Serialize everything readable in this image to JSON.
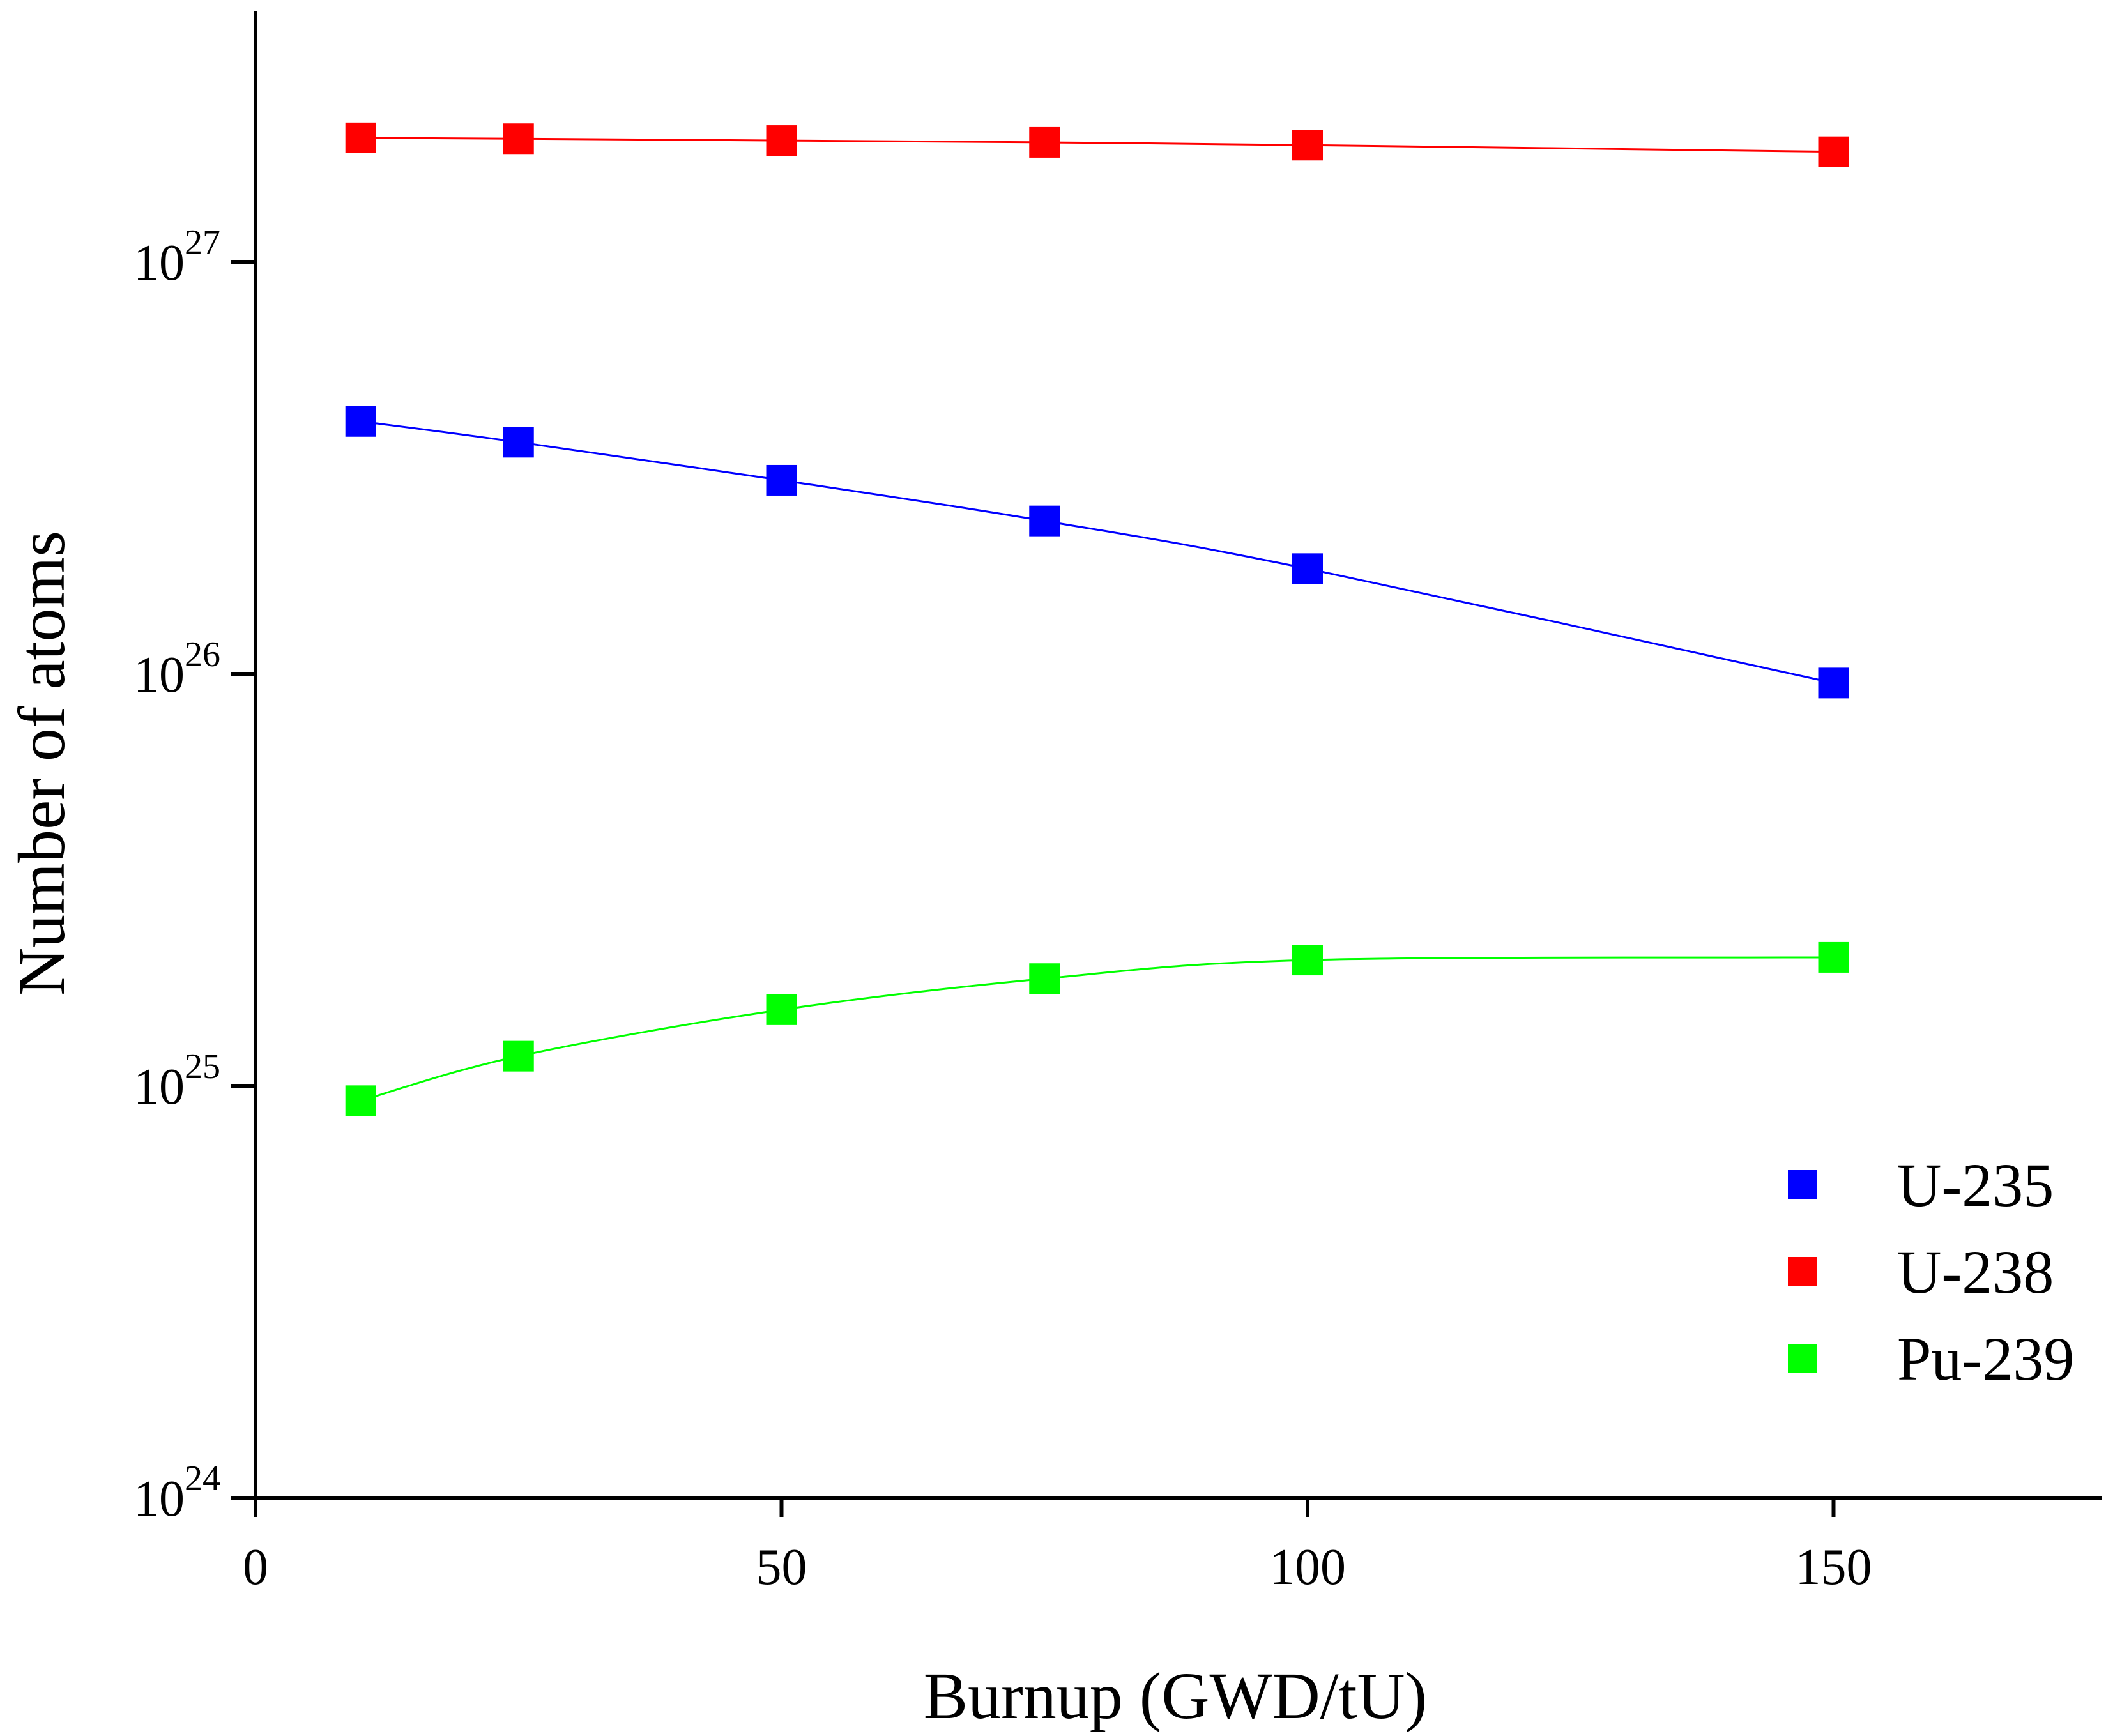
{
  "chart_data": {
    "type": "line",
    "title": "",
    "xlabel": "Burnup (GWD/tU)",
    "ylabel": "Number of atoms",
    "y_scale": "log",
    "xlim": [
      0,
      175
    ],
    "ylim": [
      1e+24,
      5e+27
    ],
    "x_ticks": [
      0,
      50,
      100,
      150
    ],
    "x_tick_labels": [
      "0",
      "50",
      "100",
      "150"
    ],
    "y_ticks": [
      {
        "value": 1e+24,
        "base": "10",
        "exp": "24"
      },
      {
        "value": 1e+25,
        "base": "10",
        "exp": "25"
      },
      {
        "value": 1e+26,
        "base": "10",
        "exp": "26"
      },
      {
        "value": 1e+27,
        "base": "10",
        "exp": "27"
      }
    ],
    "x": [
      10,
      25,
      50,
      75,
      100,
      150
    ],
    "legend_position": "bottom-right",
    "series": [
      {
        "name": "U-235",
        "color": "#0000ff",
        "marker": "square",
        "values": [
          4.1e+26,
          3.65e+26,
          2.95e+26,
          2.35e+26,
          1.8e+26,
          9.5e+25
        ]
      },
      {
        "name": "U-238",
        "color": "#ff0000",
        "marker": "square",
        "values": [
          2e+27,
          1.99e+27,
          1.97e+27,
          1.95e+27,
          1.92e+27,
          1.85e+27
        ]
      },
      {
        "name": "Pu-239",
        "color": "#00ff00",
        "marker": "square",
        "values": [
          9.2e+24,
          1.18e+25,
          1.53e+25,
          1.82e+25,
          2.02e+25,
          2.05e+25
        ]
      }
    ]
  }
}
